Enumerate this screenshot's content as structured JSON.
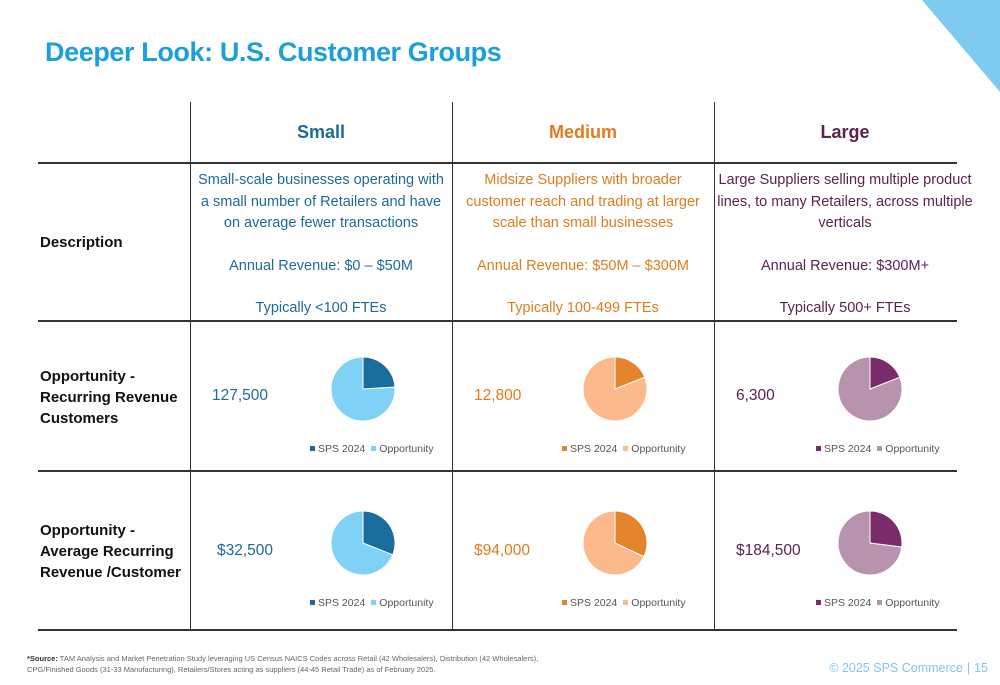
{
  "title": "Deeper Look: U.S. Customer Groups",
  "colors": {
    "small": "#1c6b99",
    "medium": "#e07c1e",
    "large": "#5a2350",
    "title": "#1aa0dd"
  },
  "columns": [
    {
      "key": "small",
      "label": "Small",
      "description": "Small-scale businesses operating with a small number of Retailers and have on average fewer transactions",
      "revenue": "Annual Revenue: $0 – $50M",
      "ftes": "Typically <100 FTEs",
      "customers_value": "127,500",
      "arr_value": "$32,500",
      "pie_colors": {
        "sps": "#1a6d9c",
        "opp": "#7fd2f5"
      },
      "customers_sps_fraction": 0.24,
      "arr_sps_fraction": 0.31
    },
    {
      "key": "medium",
      "label": "Medium",
      "description": "Midsize Suppliers with broader customer reach and trading at larger scale than small businesses",
      "revenue": "Annual Revenue: $50M – $300M",
      "ftes": "Typically 100-499 FTEs",
      "customers_value": "12,800",
      "arr_value": "$94,000",
      "pie_colors": {
        "sps": "#e3832b",
        "opp": "#fcb98c"
      },
      "customers_sps_fraction": 0.19,
      "arr_sps_fraction": 0.32
    },
    {
      "key": "large",
      "label": "Large",
      "description": "Large Suppliers selling multiple product lines, to many Retailers, across multiple verticals",
      "revenue": "Annual Revenue: $300M+",
      "ftes": "Typically 500+ FTEs",
      "customers_value": "6,300",
      "arr_value": "$184,500",
      "pie_colors": {
        "sps": "#7a2c6a",
        "opp": "#b893ad"
      },
      "customers_sps_fraction": 0.19,
      "arr_sps_fraction": 0.27
    }
  ],
  "rows": {
    "description": "Description",
    "customers": "Opportunity - Recurring Revenue Customers",
    "arr": "Opportunity - Average Recurring Revenue /Customer"
  },
  "legend": {
    "sps": "SPS 2024",
    "opp": "Opportunity"
  },
  "source": {
    "label": "*Source:",
    "text": " TAM Analysis and Market Penetration Study leveraging US Census NAICS Codes across Retail (42 Wholesalers), Distribution (42 Wholesalers), CPG/Finished Goods (31-33 Manufacturing), Retailers/Stores acting as suppliers (44-45 Retail Trade) as of February 2025."
  },
  "footer": {
    "copyright": "© 2025 SPS Commerce",
    "page": "15"
  }
}
